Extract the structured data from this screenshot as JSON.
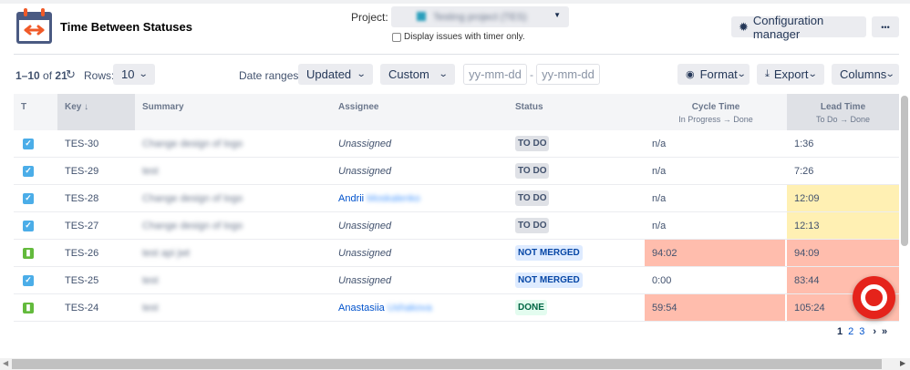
{
  "header": {
    "title": "Time Between Statuses",
    "project_label": "Project:",
    "project_value": "Testing project (TES)",
    "timer_checkbox_label": "Display issues with timer only.",
    "timer_checked": false,
    "config_button": "Configuration manager",
    "more_button": "•••"
  },
  "toolbar": {
    "range_start": "1–10",
    "of_label": "of",
    "total": "21",
    "rows_label": "Rows:",
    "rows_value": "10",
    "date_ranges_label": "Date ranges:",
    "date_field": "Updated",
    "date_preset": "Custom",
    "from_placeholder": "yy-mm-dd",
    "separator": "-",
    "to_placeholder": "yy-mm-dd",
    "format_button": "Format",
    "export_button": "Export",
    "columns_button": "Columns"
  },
  "table": {
    "headers": {
      "type": "T",
      "key": "Key ↓",
      "summary": "Summary",
      "assignee": "Assignee",
      "status": "Status",
      "cycle": "Cycle Time",
      "cycle_sub": "In Progress → Done",
      "lead": "Lead Time",
      "lead_sub": "To Do → Done"
    },
    "rows": [
      {
        "type": "task",
        "key": "TES-30",
        "summary": "Change design of logo",
        "assignee": "Unassigned",
        "assignee_last": "",
        "status": "TO DO",
        "cycle": "n/a",
        "lead": "1:36",
        "cycle_color": "",
        "lead_color": ""
      },
      {
        "type": "task",
        "key": "TES-29",
        "summary": "test",
        "assignee": "Unassigned",
        "assignee_last": "",
        "status": "TO DO",
        "cycle": "n/a",
        "lead": "7:26",
        "cycle_color": "",
        "lead_color": ""
      },
      {
        "type": "task",
        "key": "TES-28",
        "summary": "Change design of logo",
        "assignee": "Andrii",
        "assignee_last": "Moskalenko",
        "status": "TO DO",
        "cycle": "n/a",
        "lead": "12:09",
        "cycle_color": "",
        "lead_color": "#fff0b3"
      },
      {
        "type": "task",
        "key": "TES-27",
        "summary": "Change design of logo",
        "assignee": "Unassigned",
        "assignee_last": "",
        "status": "TO DO",
        "cycle": "n/a",
        "lead": "12:13",
        "cycle_color": "",
        "lead_color": "#fff0b3"
      },
      {
        "type": "story",
        "key": "TES-26",
        "summary": "test api jwt",
        "assignee": "Unassigned",
        "assignee_last": "",
        "status": "NOT MERGED",
        "cycle": "94:02",
        "lead": "94:09",
        "cycle_color": "#ffbdad",
        "lead_color": "#ffbdad"
      },
      {
        "type": "task",
        "key": "TES-25",
        "summary": "test",
        "assignee": "Unassigned",
        "assignee_last": "",
        "status": "NOT MERGED",
        "cycle": "0:00",
        "lead": "83:44",
        "cycle_color": "",
        "lead_color": "#ffbdad"
      },
      {
        "type": "story",
        "key": "TES-24",
        "summary": "test",
        "assignee": "Anastasiia",
        "assignee_last": "Ushakova",
        "status": "DONE",
        "cycle": "59:54",
        "lead": "105:24",
        "cycle_color": "#ffbdad",
        "lead_color": "#ffbdad"
      }
    ]
  },
  "pagination": {
    "pages": [
      "1",
      "2",
      "3"
    ],
    "current": "1",
    "next": "›",
    "last": "»"
  },
  "colors": {
    "accent": "#0052cc",
    "brand_red": "#e5231b",
    "task": "#4bade8",
    "story": "#63ba3c"
  }
}
